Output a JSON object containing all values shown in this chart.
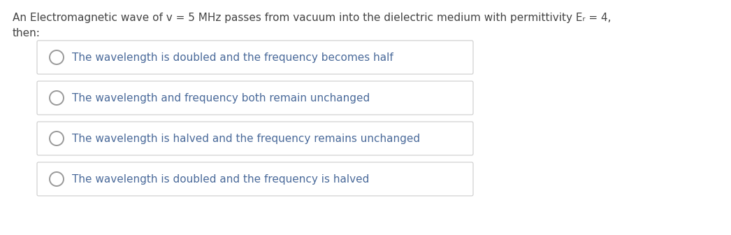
{
  "background_color": "#ffffff",
  "question_line1": "An Electromagnetic wave of v = 5 MHz passes from vacuum into the dielectric medium with permittivity Eᵣ = 4,",
  "question_line2": "then:",
  "options": [
    "The wavelength is doubled and the frequency becomes half",
    "The wavelength and frequency both remain unchanged",
    "The wavelength is halved and the frequency remains unchanged",
    "The wavelength is doubled and the frequency is halved"
  ],
  "question_color": "#444444",
  "option_text_color": "#4a6a9a",
  "box_edge_color": "#cccccc",
  "box_face_color": "#ffffff",
  "circle_edge_color": "#999999",
  "question_fontsize": 11.0,
  "option_fontsize": 11.0,
  "fig_width": 10.46,
  "fig_height": 3.36,
  "dpi": 100
}
